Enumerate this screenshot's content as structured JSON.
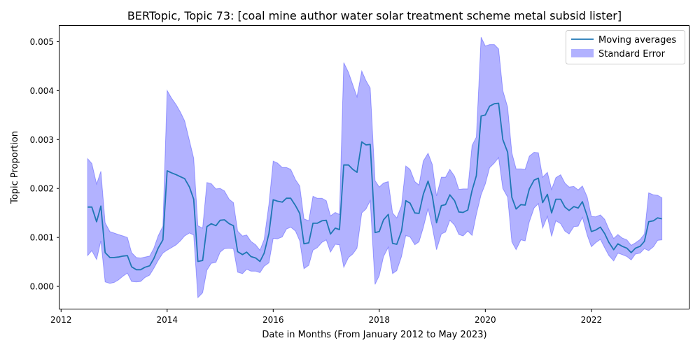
{
  "chart_data": {
    "type": "line",
    "title": "BERTopic, Topic 73: [coal mine author water solar treatment scheme metal subsid lister]",
    "xlabel": "Date in Months (From January 2012 to May 2023)",
    "ylabel": "Topic Proportion",
    "xlim": [
      2011.97,
      2023.85
    ],
    "ylim": [
      -0.00047,
      0.00532
    ],
    "x_ticks": [
      2012,
      2014,
      2016,
      2018,
      2020,
      2022
    ],
    "y_ticks": [
      0.0,
      0.001,
      0.002,
      0.003,
      0.004,
      0.005
    ],
    "y_tick_labels": [
      "0.000",
      "0.001",
      "0.002",
      "0.003",
      "0.004",
      "0.005"
    ],
    "legend_position": "top-right",
    "colors": {
      "line": "#1f77b4",
      "band": "#0000ff",
      "band_opacity": 0.3
    },
    "series": [
      {
        "name": "Moving averages",
        "x": [
          2012.5,
          2012.58,
          2012.67,
          2012.75,
          2012.83,
          2012.92,
          2013.0,
          2013.08,
          2013.17,
          2013.25,
          2013.33,
          2013.42,
          2013.5,
          2013.58,
          2013.67,
          2013.75,
          2013.83,
          2013.92,
          2014.0,
          2014.08,
          2014.17,
          2014.25,
          2014.33,
          2014.42,
          2014.5,
          2014.58,
          2014.67,
          2014.75,
          2014.83,
          2014.92,
          2015.0,
          2015.08,
          2015.17,
          2015.25,
          2015.33,
          2015.42,
          2015.5,
          2015.58,
          2015.67,
          2015.75,
          2015.83,
          2015.92,
          2016.0,
          2016.08,
          2016.17,
          2016.25,
          2016.33,
          2016.42,
          2016.5,
          2016.58,
          2016.67,
          2016.75,
          2016.83,
          2016.92,
          2017.0,
          2017.08,
          2017.17,
          2017.25,
          2017.33,
          2017.42,
          2017.5,
          2017.58,
          2017.67,
          2017.75,
          2017.83,
          2017.92,
          2018.0,
          2018.08,
          2018.17,
          2018.25,
          2018.33,
          2018.42,
          2018.5,
          2018.58,
          2018.67,
          2018.75,
          2018.83,
          2018.92,
          2019.0,
          2019.08,
          2019.17,
          2019.25,
          2019.33,
          2019.42,
          2019.5,
          2019.58,
          2019.67,
          2019.75,
          2019.83,
          2019.92,
          2020.0,
          2020.08,
          2020.17,
          2020.25,
          2020.33,
          2020.42,
          2020.5,
          2020.58,
          2020.67,
          2020.75,
          2020.83,
          2020.92,
          2021.0,
          2021.08,
          2021.17,
          2021.25,
          2021.33,
          2021.42,
          2021.5,
          2021.58,
          2021.67,
          2021.75,
          2021.83,
          2021.92,
          2022.0,
          2022.08,
          2022.17,
          2022.25,
          2022.33,
          2022.42,
          2022.5,
          2022.58,
          2022.67,
          2022.75,
          2022.83,
          2022.92,
          2023.0,
          2023.08,
          2023.17,
          2023.25,
          2023.33
        ],
        "values": [
          0.00162,
          0.00162,
          0.00132,
          0.00164,
          0.00069,
          0.00059,
          0.00059,
          0.0006,
          0.00062,
          0.00063,
          0.0004,
          0.00034,
          0.00034,
          0.00039,
          0.00042,
          0.00057,
          0.00078,
          0.00095,
          0.00236,
          0.00232,
          0.00228,
          0.00224,
          0.0022,
          0.00203,
          0.00178,
          0.00051,
          0.00053,
          0.00122,
          0.00128,
          0.00124,
          0.00135,
          0.00136,
          0.00128,
          0.00124,
          0.00071,
          0.00065,
          0.0007,
          0.00061,
          0.00058,
          0.00051,
          0.00068,
          0.00108,
          0.00177,
          0.00174,
          0.00172,
          0.0018,
          0.0018,
          0.00165,
          0.00149,
          0.00087,
          0.00089,
          0.00129,
          0.00129,
          0.00134,
          0.00135,
          0.00107,
          0.00119,
          0.00116,
          0.00248,
          0.00248,
          0.00239,
          0.00233,
          0.00295,
          0.00289,
          0.0029,
          0.0011,
          0.00112,
          0.00136,
          0.00147,
          0.00088,
          0.00086,
          0.00113,
          0.00175,
          0.0017,
          0.0015,
          0.00149,
          0.00188,
          0.00215,
          0.00185,
          0.0013,
          0.00165,
          0.00167,
          0.00187,
          0.00175,
          0.00152,
          0.00151,
          0.00156,
          0.00196,
          0.00226,
          0.00348,
          0.0035,
          0.00368,
          0.00373,
          0.00374,
          0.003,
          0.00274,
          0.00182,
          0.00158,
          0.00167,
          0.00166,
          0.00199,
          0.00217,
          0.00221,
          0.00171,
          0.00188,
          0.0015,
          0.00178,
          0.00178,
          0.00162,
          0.00155,
          0.00163,
          0.0016,
          0.00173,
          0.00144,
          0.00112,
          0.00115,
          0.00121,
          0.00108,
          0.0009,
          0.00075,
          0.00087,
          0.00082,
          0.00078,
          0.00069,
          0.00078,
          0.00082,
          0.00092,
          0.00132,
          0.00134,
          0.0014,
          0.00138
        ]
      },
      {
        "name": "Standard Error",
        "lower": [
          0.00063,
          0.00073,
          0.00055,
          0.00093,
          9e-05,
          6e-05,
          8e-05,
          0.00013,
          0.00021,
          0.00027,
          0.0001,
          9e-05,
          0.0001,
          0.00018,
          0.00023,
          0.00037,
          0.00053,
          0.00068,
          0.00074,
          0.00079,
          0.00085,
          0.00093,
          0.00103,
          0.00109,
          0.00105,
          -0.00023,
          -0.00013,
          0.00033,
          0.00047,
          0.00049,
          0.0007,
          0.00077,
          0.00078,
          0.00077,
          0.00029,
          0.00026,
          0.00035,
          0.00031,
          0.00031,
          0.00028,
          0.00041,
          0.00048,
          0.00098,
          0.00097,
          0.00101,
          0.00117,
          0.00121,
          0.00113,
          0.00093,
          0.00036,
          0.00043,
          0.00074,
          0.00079,
          0.0009,
          0.00095,
          0.0007,
          0.00086,
          0.00085,
          0.00039,
          0.00059,
          0.00066,
          0.00078,
          0.0015,
          0.00158,
          0.00175,
          4e-05,
          0.00022,
          0.00061,
          0.0008,
          0.00026,
          0.00032,
          0.00061,
          0.00104,
          0.00101,
          0.00085,
          0.00091,
          0.0012,
          0.00159,
          0.00121,
          0.00075,
          0.00107,
          0.00111,
          0.00135,
          0.00125,
          0.00106,
          0.00103,
          0.00113,
          0.00104,
          0.00147,
          0.00187,
          0.00209,
          0.00242,
          0.00252,
          0.00263,
          0.002,
          0.00182,
          0.00091,
          0.00075,
          0.00095,
          0.00093,
          0.00132,
          0.0016,
          0.00169,
          0.00119,
          0.00143,
          0.00102,
          0.00134,
          0.00128,
          0.00113,
          0.00107,
          0.00122,
          0.00123,
          0.00141,
          0.00105,
          0.00081,
          0.00089,
          0.00096,
          0.00079,
          0.00063,
          0.00052,
          0.00068,
          0.00065,
          0.00061,
          0.00054,
          0.00066,
          0.00068,
          0.00077,
          0.00073,
          0.00081,
          0.00094,
          0.00095
        ],
        "upper": [
          0.00261,
          0.00251,
          0.00209,
          0.00235,
          0.0013,
          0.00112,
          0.00109,
          0.00106,
          0.00103,
          0.001,
          0.00069,
          0.00059,
          0.00058,
          0.0006,
          0.00062,
          0.00078,
          0.00103,
          0.00123,
          0.004,
          0.00385,
          0.00371,
          0.00356,
          0.00338,
          0.00298,
          0.00262,
          0.00124,
          0.00119,
          0.00212,
          0.0021,
          0.00199,
          0.002,
          0.00195,
          0.00178,
          0.00171,
          0.00113,
          0.00103,
          0.00105,
          0.00092,
          0.00085,
          0.00074,
          0.00096,
          0.00168,
          0.00256,
          0.00252,
          0.00243,
          0.00243,
          0.00239,
          0.00218,
          0.00205,
          0.00138,
          0.00134,
          0.00184,
          0.0018,
          0.0018,
          0.00175,
          0.00144,
          0.00151,
          0.00147,
          0.00457,
          0.00437,
          0.00412,
          0.00387,
          0.0044,
          0.0042,
          0.00405,
          0.00216,
          0.00203,
          0.00211,
          0.00214,
          0.0015,
          0.0014,
          0.00165,
          0.00246,
          0.00239,
          0.00214,
          0.00207,
          0.00256,
          0.00272,
          0.00249,
          0.00185,
          0.00223,
          0.00223,
          0.00239,
          0.00225,
          0.00198,
          0.00199,
          0.00199,
          0.00288,
          0.00305,
          0.00509,
          0.00491,
          0.00494,
          0.00494,
          0.00485,
          0.004,
          0.00366,
          0.00273,
          0.0024,
          0.0024,
          0.00239,
          0.00266,
          0.00274,
          0.00273,
          0.00223,
          0.00233,
          0.00198,
          0.00222,
          0.00228,
          0.00211,
          0.00203,
          0.00204,
          0.00197,
          0.00205,
          0.00183,
          0.00143,
          0.00142,
          0.00146,
          0.00137,
          0.00117,
          0.00098,
          0.00106,
          0.00099,
          0.00095,
          0.00084,
          0.00089,
          0.00096,
          0.00107,
          0.00191,
          0.00187,
          0.00186,
          0.00181
        ]
      }
    ]
  }
}
